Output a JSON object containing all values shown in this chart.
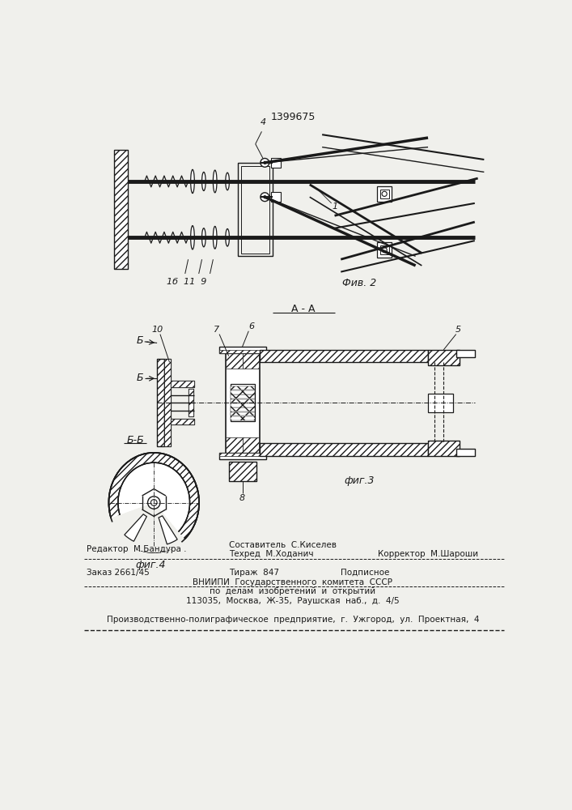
{
  "patent_number": "1399675",
  "fig2_label": "Фив. 2",
  "fig3_label": "фиг.3",
  "fig4_label": "фиг.4",
  "section_aa": "A - A",
  "section_bb_label": "Б-Б",
  "b_marker": "Б",
  "footer_line1_left": "Редактор  М.Бандура .",
  "footer_line1_center": "Составитель  С.Киселев",
  "footer_line2_center": "Техред  М.Ходанич",
  "footer_line2_right": "Корректор  М.Шароши",
  "footer_order": "Заказ 2661/45",
  "footer_tirazh": "Тираж  847",
  "footer_podpisnoe": "Подписное",
  "footer_vniipis": "ВНИИПИ  Государственного  комитета  СССР",
  "footer_dela": "по  делам  изобретений  и  открытий",
  "footer_address": "113035,  Москва,  Ж-35,  Раушская  наб.,  д.  4/5",
  "footer_bottom": "Производственно-полиграфическое  предприятие,  г.  Ужгород,  ул.  Проектная,  4",
  "bg_color": "#f0f0ec",
  "line_color": "#1a1a1a"
}
